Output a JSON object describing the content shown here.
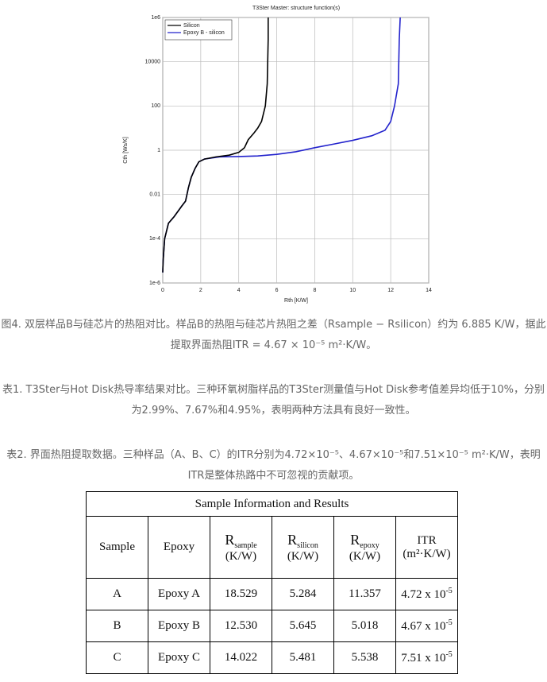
{
  "chart_data": {
    "type": "line",
    "title": "T3Ster Master: structure function(s)",
    "x_label": "Rth [K/W]",
    "y_label": "Cth [Ws/K]",
    "xlim": [
      0,
      14
    ],
    "xticks": [
      0,
      2,
      4,
      6,
      8,
      10,
      12,
      14
    ],
    "ylim": [
      1e-06,
      1000000
    ],
    "ylog": true,
    "yticks": [
      {
        "value": 1e-06,
        "label": "1e-6"
      },
      {
        "value": 0.0001,
        "label": "1e-4"
      },
      0.01,
      1,
      100,
      10000,
      {
        "value": 1000000,
        "label": "1e6"
      }
    ],
    "grid": true,
    "legend": "upper left",
    "series": [
      {
        "name": "Silicon",
        "color": "#000000",
        "x": [
          0.0,
          0.02,
          0.1,
          0.3,
          0.6,
          1.0,
          1.2,
          1.35,
          1.5,
          1.7,
          1.9,
          2.2,
          2.8,
          3.5,
          4.0,
          4.3,
          4.5,
          4.8,
          5.0,
          5.2,
          5.4,
          5.5,
          5.55,
          5.55
        ],
        "values": [
          3e-06,
          1e-05,
          0.0001,
          0.0005,
          0.001,
          0.003,
          0.005,
          0.02,
          0.06,
          0.15,
          0.3,
          0.4,
          0.5,
          0.6,
          0.8,
          1.3,
          3,
          6,
          10,
          20,
          100,
          1000,
          100000,
          1000000
        ]
      },
      {
        "name": "Epoxy B - silicon",
        "color": "#2222cc",
        "x": [
          0.0,
          0.02,
          0.1,
          0.3,
          0.6,
          1.0,
          1.2,
          1.35,
          1.5,
          1.7,
          1.9,
          2.2,
          3.0,
          4.0,
          5.0,
          6.0,
          7.0,
          8.0,
          9.0,
          10.0,
          11.0,
          11.7,
          12.0,
          12.2,
          12.4,
          12.45,
          12.5
        ],
        "values": [
          3e-06,
          1e-05,
          0.0001,
          0.0005,
          0.001,
          0.003,
          0.005,
          0.02,
          0.06,
          0.15,
          0.3,
          0.4,
          0.5,
          0.52,
          0.55,
          0.65,
          0.85,
          1.3,
          1.9,
          2.8,
          4.5,
          8,
          20,
          100,
          1000,
          100000,
          1000000
        ]
      }
    ]
  },
  "captions": [
    "图4. 双层样品B与硅芯片的热阻对比。样品B的热阻与硅芯片热阻之差（Rsample − Rsilicon）约为 6.885 K/W，据此提取界面热阻ITR = 4.67 × 10⁻⁵ m²·K/W。",
    "表1. T3Ster与Hot Disk热导率结果对比。三种环氧树脂样品的T3Ster测量值与Hot Disk参考值差异均低于10%，分别为2.99%、7.67%和4.95%，表明两种方法具有良好一致性。",
    "表2. 界面热阻提取数据。三种样品（A、B、C）的ITR分别为4.72×10⁻⁵、4.67×10⁻⁵和7.51×10⁻⁵ m²·K/W，表明ITR是整体热路中不可忽视的贡献项。"
  ],
  "table": {
    "title": "Sample Information and Results",
    "headers": [
      {
        "main": "Sample"
      },
      {
        "main": "Epoxy"
      },
      {
        "main": "R",
        "sub": "sample",
        "unit": "(K/W)"
      },
      {
        "main": "R",
        "sub": "silicon",
        "unit": "(K/W)"
      },
      {
        "main": "R",
        "sub": "epoxy",
        "unit": "(K/W)"
      },
      {
        "main": "ITR",
        "unit": "(m²·K/W)"
      }
    ],
    "rows": [
      [
        "A",
        "Epoxy A",
        "18.529",
        "5.284",
        "11.357",
        {
          "base": "4.72 x 10",
          "exp": "-5"
        }
      ],
      [
        "B",
        "Epoxy B",
        "12.530",
        "5.645",
        "5.018",
        {
          "base": "4.67 x 10",
          "exp": "-5"
        }
      ],
      [
        "C",
        "Epoxy C",
        "14.022",
        "5.481",
        "5.538",
        {
          "base": "7.51 x 10",
          "exp": "-5"
        }
      ]
    ]
  }
}
